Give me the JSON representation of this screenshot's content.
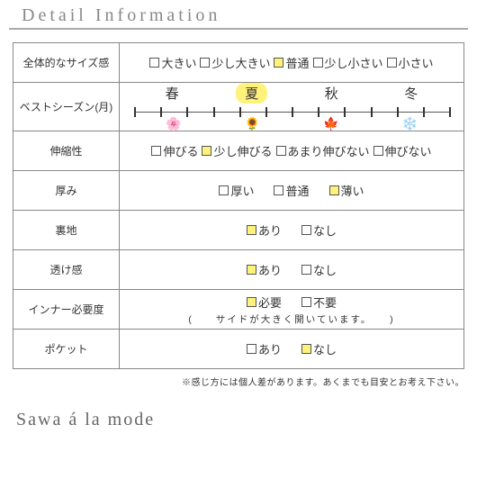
{
  "header": "Detail Information",
  "footer": "Sawa á la mode",
  "disclaimer": "※感じ方には個人差があります。あくまでも目安とお考え下さい。",
  "colors": {
    "highlight": "#fff27a",
    "border": "#888888"
  },
  "rows": {
    "size": {
      "label": "全体的なサイズ感",
      "opts": [
        {
          "t": "大きい",
          "s": false
        },
        {
          "t": "少し大きい",
          "s": false
        },
        {
          "t": "普通",
          "s": true
        },
        {
          "t": "少し小さい",
          "s": false
        },
        {
          "t": "小さい",
          "s": false
        }
      ]
    },
    "season": {
      "label": "ベストシーズン(月)",
      "items": [
        {
          "t": "春",
          "hl": false,
          "icon": "🌸"
        },
        {
          "t": "夏",
          "hl": true,
          "icon": "🌻"
        },
        {
          "t": "秋",
          "hl": false,
          "icon": "🍁"
        },
        {
          "t": "冬",
          "hl": false,
          "icon": "❄️"
        }
      ],
      "ticks": 13
    },
    "stretch": {
      "label": "伸縮性",
      "opts": [
        {
          "t": "伸びる",
          "s": false
        },
        {
          "t": "少し伸びる",
          "s": true
        },
        {
          "t": "あまり伸びない",
          "s": false
        },
        {
          "t": "伸びない",
          "s": false
        }
      ]
    },
    "thickness": {
      "label": "厚み",
      "opts": [
        {
          "t": "厚い",
          "s": false
        },
        {
          "t": "普通",
          "s": false
        },
        {
          "t": "薄い",
          "s": true
        }
      ]
    },
    "lining": {
      "label": "裏地",
      "opts": [
        {
          "t": "あり",
          "s": true
        },
        {
          "t": "なし",
          "s": false
        }
      ]
    },
    "sheer": {
      "label": "透け感",
      "opts": [
        {
          "t": "あり",
          "s": true
        },
        {
          "t": "なし",
          "s": false
        }
      ]
    },
    "inner": {
      "label": "インナー必要度",
      "opts": [
        {
          "t": "必要",
          "s": true
        },
        {
          "t": "不要",
          "s": false
        }
      ],
      "note": "(　　サイドが大きく開いています。　　)"
    },
    "pocket": {
      "label": "ポケット",
      "opts": [
        {
          "t": "あり",
          "s": false
        },
        {
          "t": "なし",
          "s": true
        }
      ]
    }
  }
}
